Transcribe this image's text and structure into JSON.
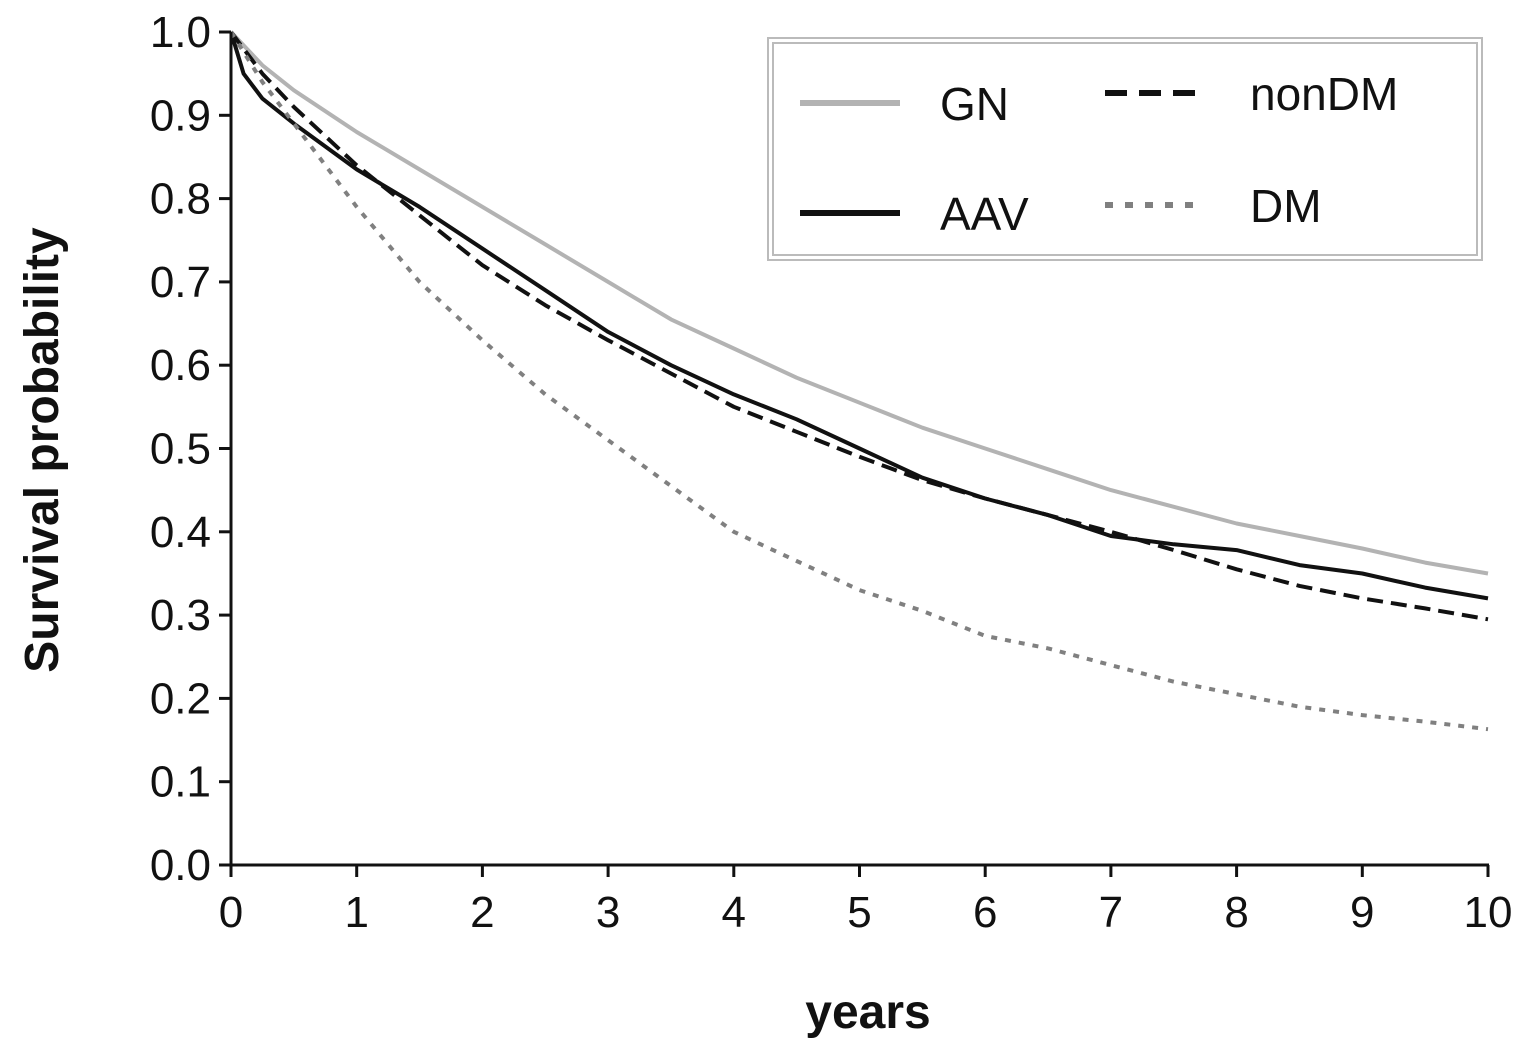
{
  "chart_data": {
    "type": "line",
    "title": "",
    "xlabel": "years",
    "ylabel": "Survival probability",
    "xlim": [
      0,
      10
    ],
    "ylim": [
      0,
      1
    ],
    "xticks": [
      "0",
      "1",
      "2",
      "3",
      "4",
      "5",
      "6",
      "7",
      "8",
      "9",
      "10"
    ],
    "yticks": [
      "0.0",
      "0.1",
      "0.2",
      "0.3",
      "0.4",
      "0.5",
      "0.6",
      "0.7",
      "0.8",
      "0.9",
      "1.0"
    ],
    "grid": false,
    "legend_position": "top-right",
    "series": [
      {
        "name": "GN",
        "color": "#b3b3b3",
        "style": "solid",
        "x": [
          0,
          0.25,
          0.5,
          1,
          1.5,
          2,
          2.5,
          3,
          3.5,
          4,
          4.5,
          5,
          5.5,
          6,
          6.5,
          7,
          7.5,
          8,
          8.5,
          9,
          9.5,
          10
        ],
        "y": [
          1.0,
          0.96,
          0.93,
          0.88,
          0.835,
          0.79,
          0.745,
          0.7,
          0.655,
          0.62,
          0.585,
          0.555,
          0.525,
          0.5,
          0.475,
          0.45,
          0.43,
          0.41,
          0.395,
          0.38,
          0.363,
          0.35
        ]
      },
      {
        "name": "AAV",
        "color": "#111111",
        "style": "solid",
        "x": [
          0,
          0.1,
          0.25,
          0.5,
          1,
          1.5,
          2,
          2.5,
          3,
          3.5,
          4,
          4.5,
          5,
          5.5,
          6,
          6.5,
          7,
          7.5,
          8,
          8.5,
          9,
          9.5,
          10
        ],
        "y": [
          1.0,
          0.95,
          0.92,
          0.89,
          0.835,
          0.79,
          0.74,
          0.69,
          0.64,
          0.6,
          0.565,
          0.535,
          0.5,
          0.465,
          0.44,
          0.42,
          0.395,
          0.385,
          0.378,
          0.36,
          0.35,
          0.333,
          0.32
        ]
      },
      {
        "name": "nonDM",
        "color": "#111111",
        "style": "dashed",
        "x": [
          0,
          0.25,
          0.5,
          1,
          1.5,
          2,
          2.5,
          3,
          3.5,
          4,
          4.5,
          5,
          5.5,
          6,
          6.5,
          7,
          7.5,
          8,
          8.5,
          9,
          9.5,
          10
        ],
        "y": [
          1.0,
          0.95,
          0.91,
          0.84,
          0.78,
          0.72,
          0.672,
          0.63,
          0.59,
          0.55,
          0.52,
          0.49,
          0.462,
          0.44,
          0.42,
          0.4,
          0.378,
          0.355,
          0.335,
          0.32,
          0.308,
          0.295
        ]
      },
      {
        "name": "DM",
        "color": "#808080",
        "style": "dotted",
        "x": [
          0,
          0.25,
          0.5,
          1,
          1.5,
          2,
          2.5,
          3,
          3.5,
          4,
          4.5,
          5,
          5.5,
          6,
          6.5,
          7,
          7.5,
          8,
          8.5,
          9,
          9.5,
          10
        ],
        "y": [
          1.0,
          0.94,
          0.89,
          0.79,
          0.7,
          0.63,
          0.565,
          0.51,
          0.455,
          0.4,
          0.365,
          0.33,
          0.305,
          0.275,
          0.26,
          0.24,
          0.22,
          0.205,
          0.19,
          0.18,
          0.172,
          0.163
        ]
      }
    ]
  }
}
